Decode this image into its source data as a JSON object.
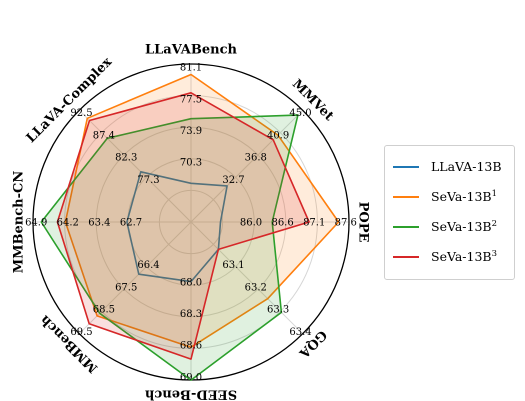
{
  "chart_data": {
    "type": "radar",
    "axes": [
      {
        "name": "LLaVABench",
        "ticks": [
          "70.3",
          "73.9",
          "77.5",
          "81.1"
        ],
        "min": 66.7,
        "max": 81.1
      },
      {
        "name": "MMVet",
        "ticks": [
          "32.7",
          "36.8",
          "40.9",
          "45.0"
        ],
        "min": 28.6,
        "max": 45.0
      },
      {
        "name": "POPE",
        "ticks": [
          "86.0",
          "86.6",
          "87.1",
          "87.6"
        ],
        "min": 85.5,
        "max": 87.6
      },
      {
        "name": "GQA",
        "ticks": [
          "63.1",
          "63.2",
          "63.3",
          "63.4"
        ],
        "min": 63.0,
        "max": 63.4
      },
      {
        "name": "SEED-Bench",
        "ticks": [
          "68.0",
          "68.3",
          "68.6",
          "69.0"
        ],
        "min": 67.7,
        "max": 69.0
      },
      {
        "name": "MMBench",
        "ticks": [
          "66.4",
          "67.5",
          "68.5",
          "69.5"
        ],
        "min": 65.3,
        "max": 69.5
      },
      {
        "name": "MMBench-CN",
        "ticks": [
          "62.7",
          "63.4",
          "64.2",
          "64.9"
        ],
        "min": 62.0,
        "max": 64.9
      },
      {
        "name": "LLaVA-Complex",
        "ticks": [
          "77.3",
          "82.3",
          "87.4",
          "92.5"
        ],
        "min": 72.2,
        "max": 92.5
      }
    ],
    "series": [
      {
        "name": "LLaVA-13B",
        "sup": "",
        "color": "#1f77b4",
        "fill": false,
        "values": [
          70.3,
          34.0,
          85.9,
          63.1,
          68.2,
          67.3,
          63.2,
          81.5
        ]
      },
      {
        "name": "SeVa-13B",
        "sup": "1",
        "color": "#ff7f0e",
        "fill": true,
        "values": [
          80.4,
          41.6,
          87.5,
          63.28,
          68.75,
          68.9,
          64.35,
          91.4
        ]
      },
      {
        "name": "SeVa-13B",
        "sup": "2",
        "color": "#2ca02c",
        "fill": true,
        "values": [
          76.3,
          44.6,
          86.6,
          63.33,
          69.05,
          68.8,
          64.8,
          87.7
        ]
      },
      {
        "name": "SeVa-13B",
        "sup": "3",
        "color": "#d62728",
        "fill": true,
        "values": [
          78.7,
          40.9,
          87.1,
          63.1,
          68.85,
          69.2,
          64.5,
          91.0
        ]
      }
    ],
    "grid": true,
    "legend_position": "right"
  }
}
